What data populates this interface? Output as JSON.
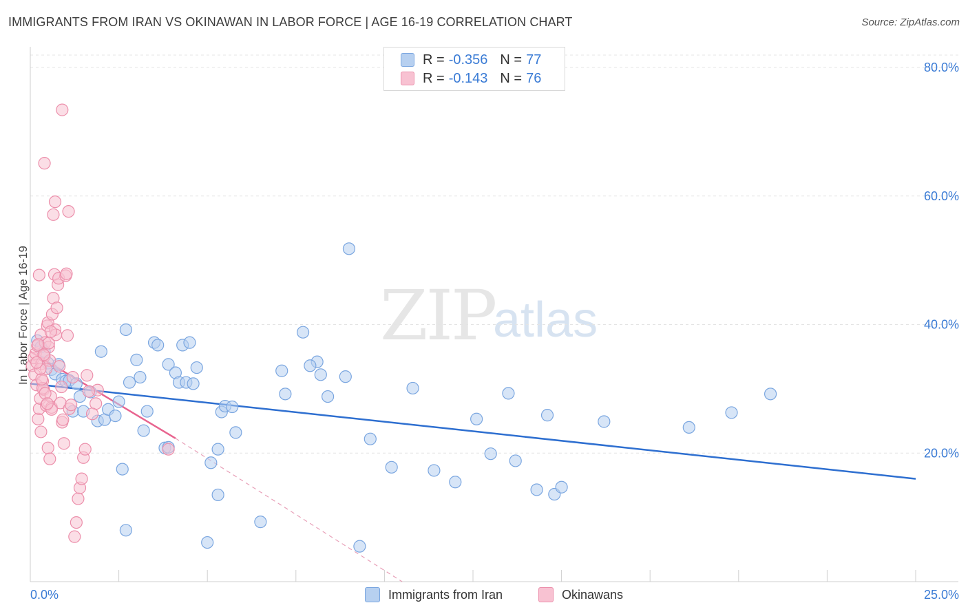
{
  "header": {
    "title": "IMMIGRANTS FROM IRAN VS OKINAWAN IN LABOR FORCE | AGE 16-19 CORRELATION CHART",
    "source": "Source: ZipAtlas.com"
  },
  "watermark": {
    "zip": "ZIP",
    "atlas": "atlas"
  },
  "legend": {
    "rows": [
      {
        "r_label": "R =",
        "r_value": "-0.356",
        "n_label": "N =",
        "n_value": "77"
      },
      {
        "r_label": "R =",
        "r_value": "-0.143",
        "n_label": "N =",
        "n_value": "76"
      }
    ]
  },
  "bottom_legend": {
    "iran": "Immigrants from Iran",
    "okinawan": "Okinawans"
  },
  "colors": {
    "iran_fill": "#b7d0f0",
    "iran_stroke": "#7aa6e0",
    "iran_line": "#2e6fd0",
    "oki_fill": "#f8c2d2",
    "oki_stroke": "#ec8fab",
    "oki_line": "#e8648f",
    "tick_text": "#3a7bd5",
    "grid": "#e4e4e4"
  },
  "chart_data": {
    "type": "scatter",
    "title": "IMMIGRANTS FROM IRAN VS OKINAWAN IN LABOR FORCE | AGE 16-19 CORRELATION CHART",
    "xlabel": "",
    "ylabel": "In Labor Force | Age 16-19",
    "xlim": [
      0,
      25
    ],
    "ylim": [
      0,
      80
    ],
    "x_tick_labels": [
      "0.0%",
      "25.0%"
    ],
    "y_ticks": [
      20,
      40,
      60,
      80
    ],
    "y_tick_labels": [
      "20.0%",
      "40.0%",
      "60.0%",
      "80.0%"
    ],
    "grid": true,
    "series": [
      {
        "name": "Immigrants from Iran",
        "points": [
          [
            0.2,
            37.5
          ],
          [
            0.3,
            36.5
          ],
          [
            0.4,
            35.8
          ],
          [
            0.5,
            34
          ],
          [
            0.6,
            33
          ],
          [
            0.7,
            32.3
          ],
          [
            0.8,
            33.8
          ],
          [
            0.9,
            31.5
          ],
          [
            1.0,
            31.2
          ],
          [
            1.1,
            31.3
          ],
          [
            1.2,
            26.5
          ],
          [
            1.3,
            30.8
          ],
          [
            1.4,
            28.8
          ],
          [
            1.5,
            26.5
          ],
          [
            1.7,
            29.5
          ],
          [
            1.9,
            25
          ],
          [
            2.0,
            35.8
          ],
          [
            2.1,
            25.2
          ],
          [
            2.2,
            26.8
          ],
          [
            2.4,
            25.8
          ],
          [
            2.5,
            28
          ],
          [
            2.6,
            17.5
          ],
          [
            2.7,
            39.2
          ],
          [
            2.8,
            31
          ],
          [
            3.0,
            34.5
          ],
          [
            3.1,
            31.8
          ],
          [
            3.2,
            23.5
          ],
          [
            3.3,
            26.5
          ],
          [
            3.5,
            37.2
          ],
          [
            3.6,
            36.8
          ],
          [
            3.8,
            20.8
          ],
          [
            3.9,
            33.8
          ],
          [
            4.1,
            32.5
          ],
          [
            4.2,
            31
          ],
          [
            4.3,
            36.8
          ],
          [
            4.4,
            31
          ],
          [
            4.5,
            37.2
          ],
          [
            4.6,
            30.8
          ],
          [
            4.7,
            33.3
          ],
          [
            5.1,
            18.5
          ],
          [
            5.3,
            20.6
          ],
          [
            5.4,
            26.4
          ],
          [
            5.5,
            27.3
          ],
          [
            5.7,
            27.2
          ],
          [
            5.8,
            23.2
          ],
          [
            7.1,
            32.8
          ],
          [
            7.2,
            29.2
          ],
          [
            7.7,
            38.8
          ],
          [
            8.1,
            34.2
          ],
          [
            8.2,
            32.2
          ],
          [
            8.4,
            28.8
          ],
          [
            8.9,
            31.9
          ],
          [
            9.0,
            51.8
          ],
          [
            9.6,
            22.2
          ],
          [
            10.2,
            17.8
          ],
          [
            10.8,
            30.1
          ],
          [
            11.4,
            17.3
          ],
          [
            12.0,
            15.5
          ],
          [
            12.6,
            25.3
          ],
          [
            13.0,
            19.9
          ],
          [
            13.5,
            29.3
          ],
          [
            13.7,
            18.8
          ],
          [
            14.3,
            14.3
          ],
          [
            14.6,
            25.9
          ],
          [
            14.8,
            13.6
          ],
          [
            15.0,
            14.7
          ],
          [
            16.2,
            24.9
          ],
          [
            18.6,
            24
          ],
          [
            19.8,
            26.3
          ],
          [
            20.9,
            29.2
          ],
          [
            7.9,
            33.6
          ],
          [
            3.9,
            20.9
          ],
          [
            2.7,
            8
          ],
          [
            5.3,
            13.5
          ],
          [
            6.5,
            9.3
          ],
          [
            9.3,
            5.5
          ],
          [
            5.0,
            6.1
          ]
        ]
      },
      {
        "name": "Okinawans",
        "points": [
          [
            0.05,
            33.6
          ],
          [
            0.1,
            34.8
          ],
          [
            0.12,
            32.2
          ],
          [
            0.15,
            35.5
          ],
          [
            0.18,
            30.6
          ],
          [
            0.2,
            36.7
          ],
          [
            0.22,
            25.3
          ],
          [
            0.25,
            26.9
          ],
          [
            0.28,
            28.5
          ],
          [
            0.3,
            38.4
          ],
          [
            0.32,
            33.9
          ],
          [
            0.35,
            31.2
          ],
          [
            0.38,
            29.9
          ],
          [
            0.4,
            35.1
          ],
          [
            0.42,
            37.2
          ],
          [
            0.45,
            27.4
          ],
          [
            0.48,
            39.8
          ],
          [
            0.5,
            40.3
          ],
          [
            0.52,
            36.5
          ],
          [
            0.55,
            34.4
          ],
          [
            0.58,
            28.8
          ],
          [
            0.6,
            27.1
          ],
          [
            0.62,
            41.6
          ],
          [
            0.65,
            44.1
          ],
          [
            0.68,
            47.8
          ],
          [
            0.7,
            39.2
          ],
          [
            0.72,
            38.4
          ],
          [
            0.75,
            42.6
          ],
          [
            0.78,
            46.2
          ],
          [
            0.8,
            47.2
          ],
          [
            0.82,
            33.5
          ],
          [
            0.85,
            27.8
          ],
          [
            0.88,
            30.3
          ],
          [
            0.9,
            24.8
          ],
          [
            0.92,
            25.2
          ],
          [
            0.95,
            21.5
          ],
          [
            1.0,
            47.6
          ],
          [
            1.02,
            47.9
          ],
          [
            1.05,
            38.3
          ],
          [
            1.08,
            57.6
          ],
          [
            1.1,
            26.9
          ],
          [
            1.15,
            27.5
          ],
          [
            1.2,
            31.8
          ],
          [
            1.25,
            7
          ],
          [
            1.3,
            9.2
          ],
          [
            1.35,
            12.9
          ],
          [
            1.4,
            14.6
          ],
          [
            1.45,
            16
          ],
          [
            1.5,
            19.3
          ],
          [
            1.55,
            20.6
          ],
          [
            0.4,
            65.1
          ],
          [
            0.7,
            59.1
          ],
          [
            0.65,
            57.1
          ],
          [
            0.9,
            73.4
          ],
          [
            0.25,
            47.7
          ],
          [
            0.3,
            23.3
          ],
          [
            0.5,
            20.8
          ],
          [
            0.55,
            19.1
          ],
          [
            0.6,
            26.8
          ],
          [
            0.35,
            30.1
          ],
          [
            0.45,
            33.1
          ],
          [
            0.52,
            37.1
          ],
          [
            0.58,
            38.9
          ],
          [
            0.42,
            29.3
          ],
          [
            0.48,
            27.7
          ],
          [
            0.38,
            35.3
          ],
          [
            0.32,
            31.5
          ],
          [
            0.28,
            33.1
          ],
          [
            0.22,
            36.9
          ],
          [
            0.18,
            34.1
          ],
          [
            1.85,
            27.7
          ],
          [
            1.6,
            32.1
          ],
          [
            1.9,
            29.8
          ],
          [
            3.9,
            20.6
          ],
          [
            1.75,
            26.1
          ],
          [
            1.65,
            29.6
          ]
        ]
      }
    ],
    "trend_lines": [
      {
        "series": "Immigrants from Iran",
        "x": [
          0,
          25
        ],
        "y": [
          30.8,
          16.0
        ]
      },
      {
        "series": "Okinawans",
        "solid_x": [
          0,
          4.1
        ],
        "solid_y": [
          35.8,
          22.3
        ],
        "dashed_x": [
          4.1,
          10.5
        ],
        "dashed_y": [
          22.3,
          0
        ]
      }
    ]
  }
}
